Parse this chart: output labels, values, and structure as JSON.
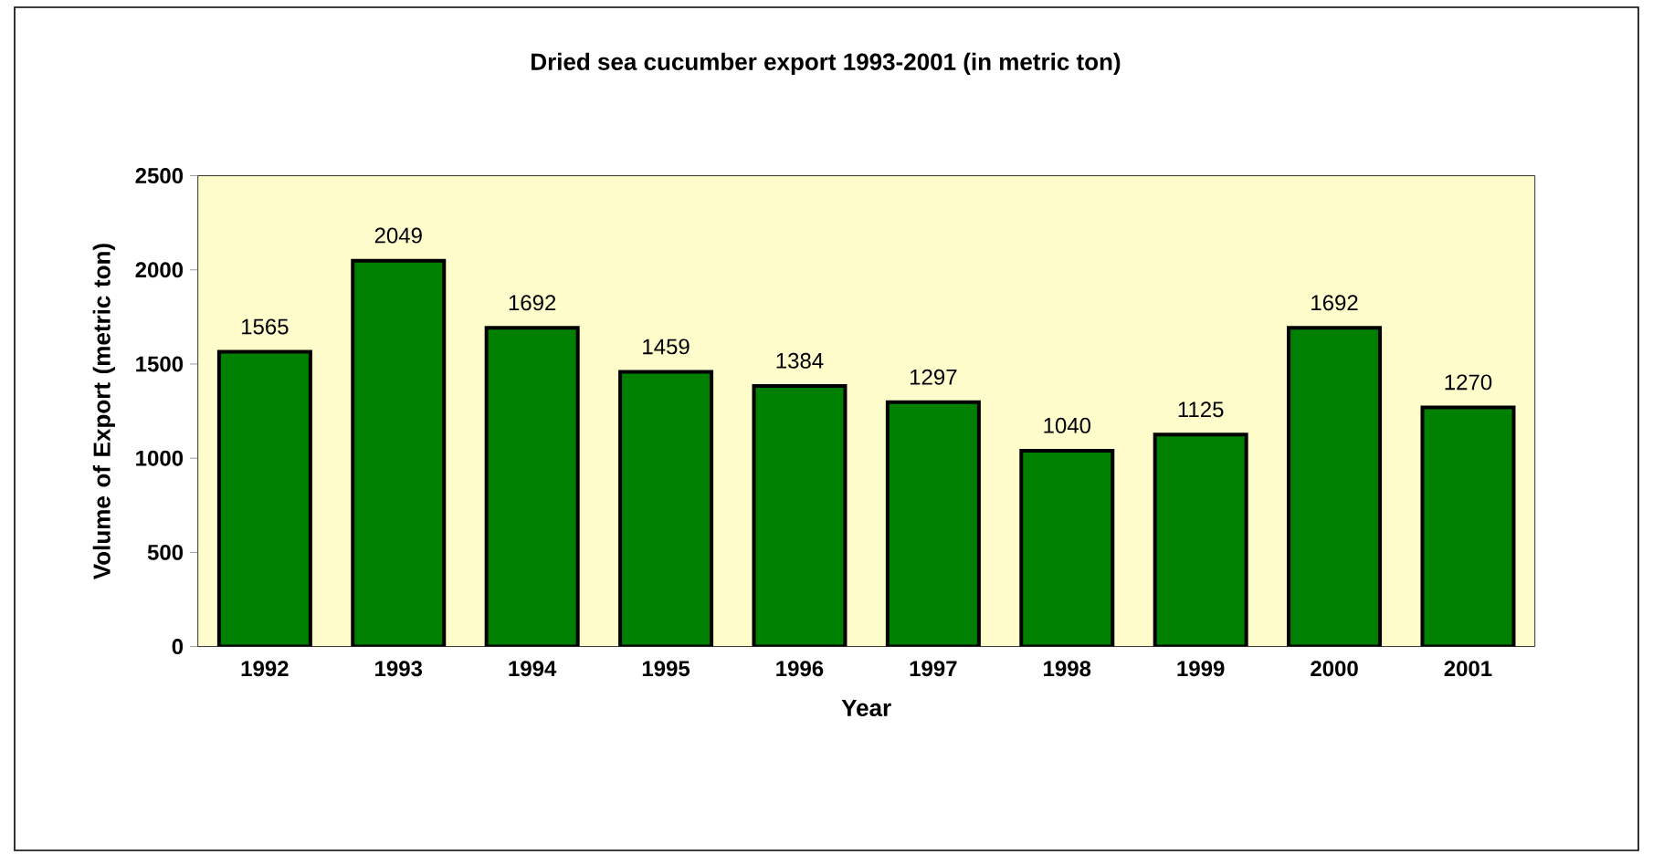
{
  "chart_data": {
    "type": "bar",
    "title": "Dried sea cucumber export 1993-2001 (in metric ton)",
    "xlabel": "Year",
    "ylabel": "Volume of Export (metric ton)",
    "categories": [
      "1992",
      "1993",
      "1994",
      "1995",
      "1996",
      "1997",
      "1998",
      "1999",
      "2000",
      "2001"
    ],
    "values": [
      1565,
      2049,
      1692,
      1459,
      1384,
      1297,
      1040,
      1125,
      1692,
      1270
    ],
    "color": "#008000",
    "ylim": [
      0,
      2500
    ],
    "yticks": [
      0,
      500,
      1000,
      1500,
      2000,
      2500
    ],
    "data_labels": true
  }
}
